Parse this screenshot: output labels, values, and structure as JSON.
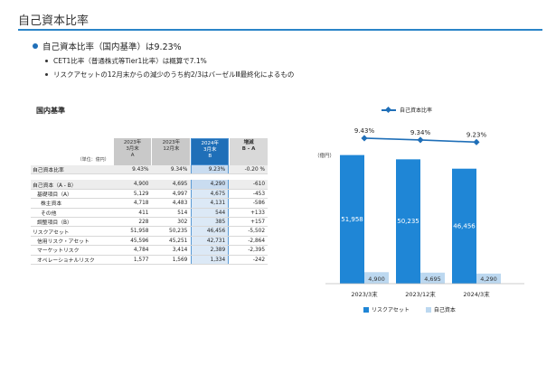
{
  "page_title": "自己資本比率",
  "bullets": {
    "main": "自己資本比率（国内基準）は9.23%",
    "sub1": "CET1比率（普通株式等Tier1比率）は概算で7.1%",
    "sub2": "リスクアセットの12月末からの減少のうち約2/3はバーゼルⅢ最終化によるもの"
  },
  "section_label": "国内基準",
  "table": {
    "unit": "（単位：億円）",
    "headers": [
      [
        "2023年",
        "3月末",
        "A"
      ],
      [
        "2023年",
        "12月末",
        ""
      ],
      [
        "2024年",
        "3月末",
        "B"
      ],
      [
        "増減",
        "B - A",
        ""
      ]
    ],
    "rows": [
      {
        "label": "自己資本比率",
        "indent": 0,
        "shade": true,
        "values": [
          "9.43%",
          "9.34%",
          "9.23%",
          "-0.20 %"
        ]
      },
      {
        "label": "自己資本（A - B）",
        "indent": 0,
        "shade": true,
        "gap_before": true,
        "values": [
          "4,900",
          "4,695",
          "4,290",
          "-610"
        ]
      },
      {
        "label": "基礎項目（A）",
        "indent": 1,
        "shade": false,
        "values": [
          "5,129",
          "4,997",
          "4,675",
          "-453"
        ]
      },
      {
        "label": "株主資本",
        "indent": 2,
        "shade": false,
        "values": [
          "4,718",
          "4,483",
          "4,131",
          "-586"
        ]
      },
      {
        "label": "その他",
        "indent": 2,
        "shade": false,
        "values": [
          "411",
          "514",
          "544",
          "+133"
        ]
      },
      {
        "label": "調整項目（B）",
        "indent": 1,
        "shade": false,
        "values": [
          "228",
          "302",
          "385",
          "+157"
        ]
      },
      {
        "label": "リスクアセット",
        "indent": 0,
        "shade": false,
        "values": [
          "51,958",
          "50,235",
          "46,456",
          "-5,502"
        ]
      },
      {
        "label": "信用リスク・アセット",
        "indent": 1,
        "shade": false,
        "values": [
          "45,596",
          "45,251",
          "42,731",
          "-2,864"
        ]
      },
      {
        "label": "マーケットリスク",
        "indent": 1,
        "shade": false,
        "values": [
          "4,784",
          "3,414",
          "2,389",
          "-2,395"
        ]
      },
      {
        "label": "オペレーショナルリスク",
        "indent": 1,
        "shade": false,
        "values": [
          "1,577",
          "1,569",
          "1,334",
          "-242"
        ]
      }
    ]
  },
  "chart_data": {
    "type": "bar",
    "categories": [
      "2023/3末",
      "2023/12末",
      "2024/3末"
    ],
    "series": [
      {
        "name": "リスクアセット",
        "values": [
          51958,
          50235,
          46456
        ],
        "color": "#1f86d6"
      },
      {
        "name": "自己資本",
        "values": [
          4900,
          4695,
          4290
        ],
        "color": "#bcd8f0"
      }
    ],
    "line_series": {
      "name": "自己資本比率",
      "values": [
        9.43,
        9.34,
        9.23
      ],
      "labels": [
        "9.43%",
        "9.34%",
        "9.23%"
      ],
      "color": "#1f6fb8"
    },
    "ylabel": "（億円）",
    "ylim": [
      0,
      60000
    ],
    "legend_top": "自己資本比率",
    "legend_bottom": [
      "リスクアセット",
      "自己資本"
    ]
  }
}
